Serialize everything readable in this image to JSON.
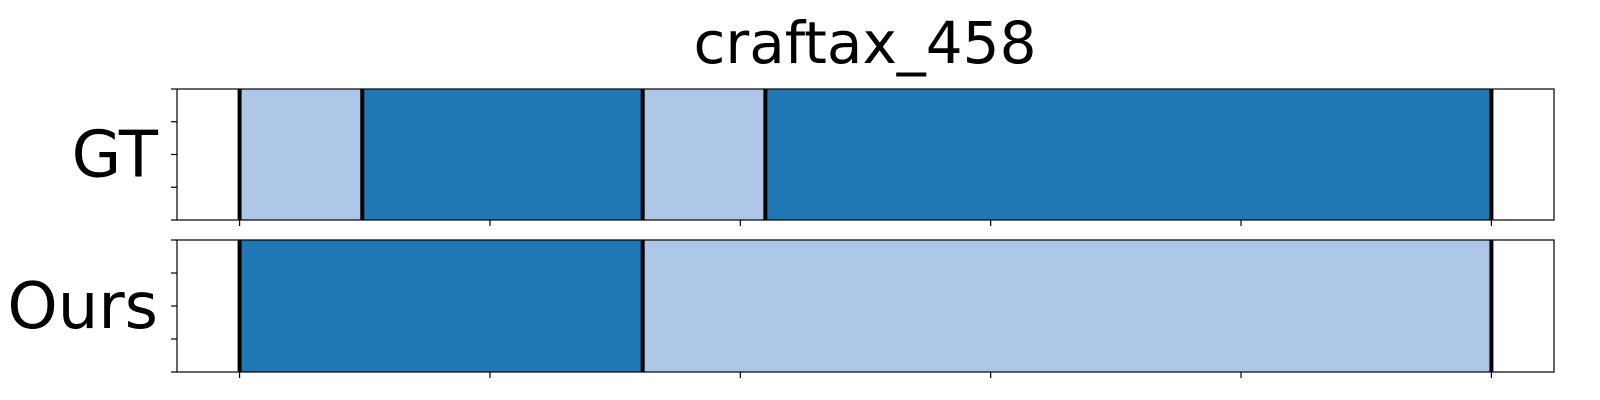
{
  "chart_data": {
    "type": "segmentation-timeline",
    "title": "craftax_458",
    "xlim": [
      0,
      1.1
    ],
    "x_ticks": [
      0,
      0.2,
      0.4,
      0.6,
      0.8,
      1.0
    ],
    "colors": {
      "dark": "#1f77b4",
      "light": "#aec7e8",
      "boundary": "#000000"
    },
    "rows": [
      {
        "label": "GT",
        "segments": [
          {
            "start": 0.0,
            "end": 0.098,
            "class": "light"
          },
          {
            "start": 0.098,
            "end": 0.322,
            "class": "dark"
          },
          {
            "start": 0.322,
            "end": 0.42,
            "class": "light"
          },
          {
            "start": 0.42,
            "end": 1.0,
            "class": "dark"
          }
        ],
        "boundaries": [
          0.0,
          0.098,
          0.322,
          0.42,
          1.0
        ]
      },
      {
        "label": "Ours",
        "segments": [
          {
            "start": 0.0,
            "end": 0.322,
            "class": "dark"
          },
          {
            "start": 0.322,
            "end": 1.0,
            "class": "light"
          }
        ],
        "boundaries": [
          0.0,
          0.322,
          1.0
        ]
      }
    ]
  }
}
